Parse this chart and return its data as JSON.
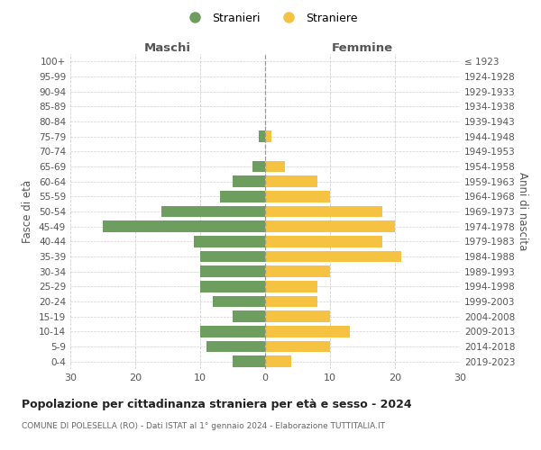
{
  "age_groups": [
    "100+",
    "95-99",
    "90-94",
    "85-89",
    "80-84",
    "75-79",
    "70-74",
    "65-69",
    "60-64",
    "55-59",
    "50-54",
    "45-49",
    "40-44",
    "35-39",
    "30-34",
    "25-29",
    "20-24",
    "15-19",
    "10-14",
    "5-9",
    "0-4"
  ],
  "birth_years": [
    "≤ 1923",
    "1924-1928",
    "1929-1933",
    "1934-1938",
    "1939-1943",
    "1944-1948",
    "1949-1953",
    "1954-1958",
    "1959-1963",
    "1964-1968",
    "1969-1973",
    "1974-1978",
    "1979-1983",
    "1984-1988",
    "1989-1993",
    "1994-1998",
    "1999-2003",
    "2004-2008",
    "2009-2013",
    "2014-2018",
    "2019-2023"
  ],
  "maschi": [
    0,
    0,
    0,
    0,
    0,
    1,
    0,
    2,
    5,
    7,
    16,
    25,
    11,
    10,
    10,
    10,
    8,
    5,
    10,
    9,
    5
  ],
  "femmine": [
    0,
    0,
    0,
    0,
    0,
    1,
    0,
    3,
    8,
    10,
    18,
    20,
    18,
    21,
    10,
    8,
    8,
    10,
    13,
    10,
    4
  ],
  "male_color": "#6e9e5f",
  "female_color": "#f5c242",
  "background_color": "#ffffff",
  "grid_color": "#cccccc",
  "title": "Popolazione per cittadinanza straniera per età e sesso - 2024",
  "subtitle": "COMUNE DI POLESELLA (RO) - Dati ISTAT al 1° gennaio 2024 - Elaborazione TUTTITALIA.IT",
  "legend_stranieri": "Stranieri",
  "legend_straniere": "Straniere",
  "left_label": "Maschi",
  "right_label": "Femmine",
  "y_left_label": "Fasce di età",
  "y_right_label": "Anni di nascita",
  "xlim": 30
}
